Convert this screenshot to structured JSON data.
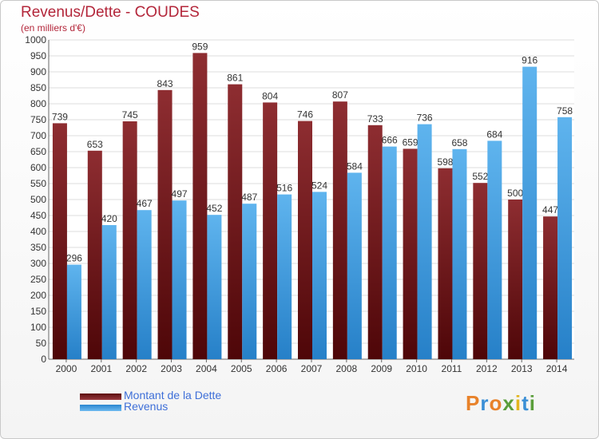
{
  "header": {
    "title": "Revenus/Dette - COUDES",
    "subtitle": "(en milliers d'€)"
  },
  "chart_data": {
    "type": "bar",
    "title": "Revenus/Dette - COUDES",
    "subtitle": "(en milliers d'€)",
    "categories": [
      "2000",
      "2001",
      "2002",
      "2003",
      "2004",
      "2005",
      "2006",
      "2007",
      "2008",
      "2009",
      "2010",
      "2011",
      "2012",
      "2013",
      "2014"
    ],
    "series": [
      {
        "name": "Montant de la Dette",
        "color": "#7a1f24",
        "values": [
          739,
          653,
          745,
          843,
          959,
          861,
          804,
          746,
          807,
          733,
          659,
          598,
          552,
          500,
          447
        ]
      },
      {
        "name": "Revenus",
        "color": "#4aa3e6",
        "values": [
          296,
          420,
          467,
          497,
          452,
          487,
          516,
          524,
          584,
          666,
          736,
          658,
          684,
          916,
          758
        ]
      }
    ],
    "ylim": [
      0,
      1000
    ],
    "yticks": [
      0,
      50,
      100,
      150,
      200,
      250,
      300,
      350,
      400,
      450,
      500,
      550,
      600,
      650,
      700,
      750,
      800,
      850,
      900,
      950,
      1000
    ],
    "grid": true,
    "legend_position": "bottom-left"
  },
  "legend": {
    "items": [
      {
        "label": "Montant de la Dette"
      },
      {
        "label": "Revenus"
      }
    ]
  },
  "logo": {
    "text": "Proxiti",
    "letter_colors": [
      "#e8822a",
      "#3b8fd6",
      "#e8822a",
      "#5a9e3a",
      "#e2b51e",
      "#3b8fd6",
      "#5a9e3a"
    ]
  }
}
